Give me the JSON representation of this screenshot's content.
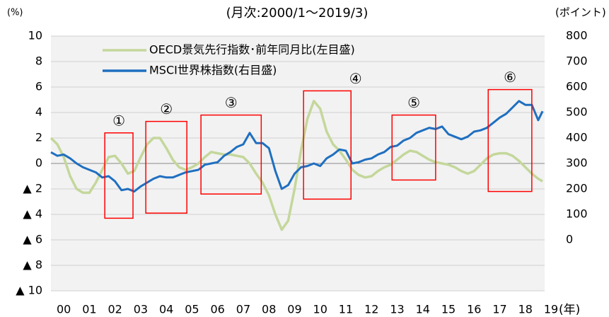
{
  "chart_data": {
    "type": "line",
    "subtitle": "(月次:2000/1～2019/3)",
    "ylabel": "(%)",
    "y2label": "(ポイント)",
    "xlabel": "(年)",
    "x": [
      2000,
      2000.25,
      2000.5,
      2000.75,
      2001,
      2001.25,
      2001.5,
      2001.75,
      2002,
      2002.25,
      2002.5,
      2002.75,
      2003,
      2003.25,
      2003.5,
      2003.75,
      2004,
      2004.25,
      2004.5,
      2004.75,
      2005,
      2005.25,
      2005.5,
      2005.75,
      2006,
      2006.25,
      2006.5,
      2006.75,
      2007,
      2007.25,
      2007.5,
      2007.75,
      2008,
      2008.25,
      2008.5,
      2008.75,
      2009,
      2009.25,
      2009.5,
      2009.75,
      2010,
      2010.25,
      2010.5,
      2010.75,
      2011,
      2011.25,
      2011.5,
      2011.75,
      2012,
      2012.25,
      2012.5,
      2012.75,
      2013,
      2013.25,
      2013.5,
      2013.75,
      2014,
      2014.25,
      2014.5,
      2014.75,
      2015,
      2015.25,
      2015.5,
      2015.75,
      2016,
      2016.25,
      2016.5,
      2016.75,
      2017,
      2017.25,
      2017.5,
      2017.75,
      2018,
      2018.25,
      2018.5,
      2018.75,
      2019,
      2019.17
    ],
    "series": [
      {
        "name": "OECD景気先行指数･前年同月比(左目盛)",
        "color": "#c4d79b",
        "values": [
          2.0,
          1.5,
          0.5,
          -1.0,
          -2.0,
          -2.3,
          -2.3,
          -1.5,
          -0.5,
          0.5,
          0.6,
          0.0,
          -0.8,
          -0.6,
          0.5,
          1.5,
          2.0,
          2.0,
          1.2,
          0.3,
          -0.3,
          -0.5,
          -0.3,
          0.0,
          0.5,
          0.9,
          0.8,
          0.7,
          0.7,
          0.6,
          0.5,
          0.0,
          -0.8,
          -1.5,
          -2.5,
          -4.0,
          -5.2,
          -4.5,
          -2.0,
          1.0,
          3.5,
          4.9,
          4.3,
          2.5,
          1.5,
          1.0,
          0.3,
          -0.5,
          -0.9,
          -1.1,
          -1.0,
          -0.6,
          -0.3,
          -0.1,
          0.3,
          0.7,
          1.0,
          0.9,
          0.6,
          0.3,
          0.1,
          0.0,
          -0.1,
          -0.3,
          -0.6,
          -0.8,
          -0.6,
          -0.1,
          0.4,
          0.7,
          0.8,
          0.8,
          0.6,
          0.2,
          -0.3,
          -0.8,
          -1.2,
          -1.4
        ]
      },
      {
        "name": "MSCI世界株指数(右目盛)",
        "color": "#1f6fc0",
        "axis": "y2",
        "values": [
          344,
          330,
          335,
          320,
          300,
          285,
          275,
          265,
          245,
          250,
          230,
          195,
          200,
          190,
          210,
          225,
          240,
          250,
          245,
          245,
          255,
          265,
          270,
          275,
          295,
          300,
          305,
          330,
          345,
          365,
          375,
          420,
          380,
          380,
          360,
          270,
          200,
          215,
          260,
          285,
          290,
          300,
          290,
          320,
          335,
          355,
          350,
          300,
          305,
          315,
          320,
          335,
          345,
          365,
          370,
          390,
          400,
          420,
          430,
          440,
          435,
          445,
          415,
          405,
          395,
          405,
          425,
          430,
          440,
          460,
          480,
          495,
          520,
          545,
          530,
          530,
          470,
          505
        ]
      }
    ],
    "xlim": [
      2000,
      2019.25
    ],
    "xticks": [
      {
        "value": 2000.5,
        "label": "00"
      },
      {
        "value": 2001.5,
        "label": "01"
      },
      {
        "value": 2002.5,
        "label": "02"
      },
      {
        "value": 2003.5,
        "label": "03"
      },
      {
        "value": 2004.5,
        "label": "04"
      },
      {
        "value": 2005.5,
        "label": "05"
      },
      {
        "value": 2006.5,
        "label": "06"
      },
      {
        "value": 2007.5,
        "label": "07"
      },
      {
        "value": 2008.5,
        "label": "08"
      },
      {
        "value": 2009.5,
        "label": "09"
      },
      {
        "value": 2010.5,
        "label": "10"
      },
      {
        "value": 2011.5,
        "label": "11"
      },
      {
        "value": 2012.5,
        "label": "12"
      },
      {
        "value": 2013.5,
        "label": "13"
      },
      {
        "value": 2014.5,
        "label": "14"
      },
      {
        "value": 2015.5,
        "label": "15"
      },
      {
        "value": 2016.5,
        "label": "16"
      },
      {
        "value": 2017.5,
        "label": "17"
      },
      {
        "value": 2018.5,
        "label": "18"
      },
      {
        "value": 2019.5,
        "label": "19"
      }
    ],
    "ylim": [
      -10,
      10
    ],
    "yticks": [
      {
        "value": -10,
        "label": "▲ 10"
      },
      {
        "value": -8,
        "label": "▲ 8"
      },
      {
        "value": -6,
        "label": "▲ 6"
      },
      {
        "value": -4,
        "label": "▲ 4"
      },
      {
        "value": -2,
        "label": "▲ 2"
      },
      0,
      2,
      4,
      6,
      8,
      10
    ],
    "y2lim": [
      -200,
      800
    ],
    "y2ticks": [
      0,
      100,
      200,
      300,
      400,
      500,
      600,
      700,
      800
    ],
    "grid": true,
    "legend": "upper left",
    "annotations": [
      {
        "text": "①",
        "x0": 2002.1,
        "x1": 2003.2,
        "y0": -4.3,
        "y1": 2.4
      },
      {
        "text": "②",
        "x0": 2003.7,
        "x1": 2005.3,
        "y0": -3.9,
        "y1": 3.3
      },
      {
        "text": "③",
        "x0": 2005.85,
        "x1": 2008.2,
        "y0": -2.4,
        "y1": 3.8
      },
      {
        "text": "④",
        "x0": 2009.85,
        "x1": 2011.7,
        "y0": -2.8,
        "y1": 5.7
      },
      {
        "text": "⑤",
        "x0": 2013.3,
        "x1": 2015.0,
        "y0": -1.3,
        "y1": 3.8
      },
      {
        "text": "⑥",
        "x0": 2017.05,
        "x1": 2018.75,
        "y0": -2.2,
        "y1": 5.8
      }
    ]
  }
}
